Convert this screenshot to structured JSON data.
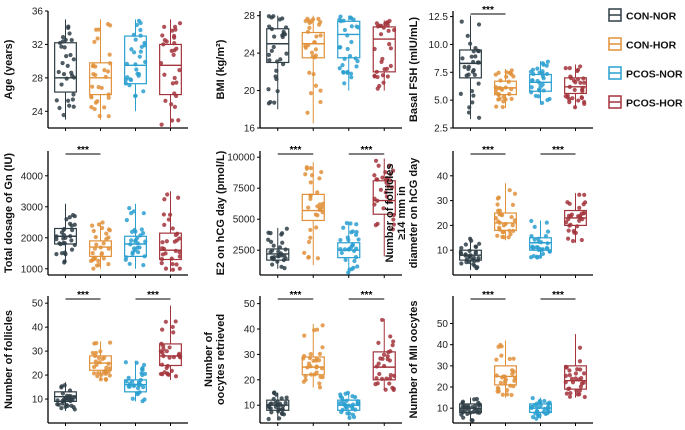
{
  "groups": [
    "CON-NOR",
    "CON-HOR",
    "PCOS-NOR",
    "PCOS-HOR"
  ],
  "colors": {
    "CON-NOR": "#2f3e46",
    "CON-HOR": "#e0913a",
    "PCOS-NOR": "#2a9fd0",
    "PCOS-HOR": "#a3343c"
  },
  "legend": {
    "items": [
      "CON-NOR",
      "CON-HOR",
      "PCOS-NOR",
      "PCOS-HOR"
    ],
    "placement": "right"
  },
  "chart_data": [
    {
      "type": "box",
      "id": "age",
      "ylabel": "Age (years)",
      "ylim": [
        22,
        36
      ],
      "yticks": [
        24,
        28,
        32,
        36
      ],
      "series": [
        {
          "name": "CON-NOR",
          "q1": 26.3,
          "median": 28.0,
          "q3": 32.2,
          "whisker_low": 23.0,
          "whisker_high": 35.0
        },
        {
          "name": "CON-HOR",
          "q1": 26.0,
          "median": 28.0,
          "q3": 29.8,
          "whisker_low": 23.0,
          "whisker_high": 35.0
        },
        {
          "name": "PCOS-NOR",
          "q1": 27.3,
          "median": 29.5,
          "q3": 33.0,
          "whisker_low": 24.0,
          "whisker_high": 35.0
        },
        {
          "name": "PCOS-HOR",
          "q1": 26.0,
          "median": 29.5,
          "q3": 32.0,
          "whisker_low": 22.0,
          "whisker_high": 35.0
        }
      ],
      "significance": []
    },
    {
      "type": "box",
      "id": "bmi",
      "ylabel": "BMI (kg/m²)",
      "ylim": [
        16,
        28.5
      ],
      "yticks": [
        16,
        20,
        24,
        28
      ],
      "series": [
        {
          "name": "CON-NOR",
          "q1": 23.0,
          "median": 25.0,
          "q3": 26.6,
          "whisker_low": 18.0,
          "whisker_high": 28.0
        },
        {
          "name": "CON-HOR",
          "q1": 23.5,
          "median": 25.0,
          "q3": 26.2,
          "whisker_low": 16.5,
          "whisker_high": 28.0
        },
        {
          "name": "PCOS-NOR",
          "q1": 23.5,
          "median": 26.0,
          "q3": 27.4,
          "whisker_low": 20.0,
          "whisker_high": 28.0
        },
        {
          "name": "PCOS-HOR",
          "q1": 22.0,
          "median": 25.5,
          "q3": 26.8,
          "whisker_low": 20.0,
          "whisker_high": 27.5
        }
      ],
      "significance": []
    },
    {
      "type": "box",
      "id": "fsh",
      "ylabel": "Basal FSH (mIU/mL)",
      "ylim": [
        2.5,
        13
      ],
      "yticks": [
        2.5,
        5.0,
        7.5,
        10.0,
        12.5
      ],
      "series": [
        {
          "name": "CON-NOR",
          "q1": 7.0,
          "median": 8.3,
          "q3": 9.5,
          "whisker_low": 3.3,
          "whisker_high": 12.6
        },
        {
          "name": "CON-HOR",
          "q1": 5.5,
          "median": 6.1,
          "q3": 6.7,
          "whisker_low": 4.3,
          "whisker_high": 7.8
        },
        {
          "name": "PCOS-NOR",
          "q1": 5.8,
          "median": 6.6,
          "q3": 7.3,
          "whisker_low": 4.6,
          "whisker_high": 8.5
        },
        {
          "name": "PCOS-HOR",
          "q1": 5.6,
          "median": 6.2,
          "q3": 7.0,
          "whisker_low": 4.3,
          "whisker_high": 8.2
        }
      ],
      "significance": [
        {
          "from": 0,
          "to": 1,
          "label": "***"
        }
      ]
    },
    {
      "type": "box",
      "id": "gn",
      "ylabel": "Total dosage of Gn (IU)",
      "ylim": [
        800,
        4800
      ],
      "yticks": [
        1000,
        2000,
        3000,
        4000
      ],
      "series": [
        {
          "name": "CON-NOR",
          "q1": 1800,
          "median": 2050,
          "q3": 2300,
          "whisker_low": 1200,
          "whisker_high": 3100
        },
        {
          "name": "CON-HOR",
          "q1": 1400,
          "median": 1700,
          "q3": 1900,
          "whisker_low": 1000,
          "whisker_high": 2500
        },
        {
          "name": "PCOS-NOR",
          "q1": 1400,
          "median": 1800,
          "q3": 2050,
          "whisker_low": 1000,
          "whisker_high": 3100
        },
        {
          "name": "PCOS-HOR",
          "q1": 1300,
          "median": 1600,
          "q3": 2150,
          "whisker_low": 900,
          "whisker_high": 3500
        }
      ],
      "significance": [
        {
          "from": 0,
          "to": 1,
          "label": "***"
        }
      ]
    },
    {
      "type": "box",
      "id": "e2",
      "ylabel": "E2 on hCG day (pmol/L)",
      "ylim": [
        500,
        10500
      ],
      "yticks": [
        2500,
        5000,
        7500,
        10000
      ],
      "series": [
        {
          "name": "CON-NOR",
          "q1": 1700,
          "median": 2200,
          "q3": 2600,
          "whisker_low": 1000,
          "whisker_high": 4300
        },
        {
          "name": "CON-HOR",
          "q1": 4900,
          "median": 5700,
          "q3": 7000,
          "whisker_low": 1300,
          "whisker_high": 9600
        },
        {
          "name": "PCOS-NOR",
          "q1": 1900,
          "median": 2500,
          "q3": 3100,
          "whisker_low": 600,
          "whisker_high": 4800
        },
        {
          "name": "PCOS-HOR",
          "q1": 5400,
          "median": 6500,
          "q3": 8100,
          "whisker_low": 2000,
          "whisker_high": 9900
        }
      ],
      "significance": [
        {
          "from": 0,
          "to": 1,
          "label": "***"
        },
        {
          "from": 2,
          "to": 3,
          "label": "***"
        }
      ]
    },
    {
      "type": "box",
      "id": "follicles14",
      "ylabel": "Number of follicles ≥14 mm in diameter on hCG day",
      "ylabel_lines": [
        "Number of follicles",
        "≥14 mm in",
        "diameter on hCG day"
      ],
      "ylim": [
        0,
        50
      ],
      "yticks": [
        10,
        20,
        30,
        40
      ],
      "series": [
        {
          "name": "CON-NOR",
          "q1": 6,
          "median": 8,
          "q3": 10,
          "whisker_low": 2,
          "whisker_high": 15
        },
        {
          "name": "CON-HOR",
          "q1": 18,
          "median": 21,
          "q3": 25,
          "whisker_low": 14,
          "whisker_high": 37
        },
        {
          "name": "PCOS-NOR",
          "q1": 10,
          "median": 13,
          "q3": 15,
          "whisker_low": 7,
          "whisker_high": 22
        },
        {
          "name": "PCOS-HOR",
          "q1": 20,
          "median": 23,
          "q3": 26,
          "whisker_low": 13,
          "whisker_high": 33
        }
      ],
      "significance": [
        {
          "from": 0,
          "to": 1,
          "label": "***"
        },
        {
          "from": 2,
          "to": 3,
          "label": "***"
        }
      ]
    },
    {
      "type": "box",
      "id": "follicles",
      "ylabel": "Number of follicles",
      "ylim": [
        0,
        53
      ],
      "yticks": [
        10,
        20,
        30,
        40,
        50
      ],
      "series": [
        {
          "name": "CON-NOR",
          "q1": 9,
          "median": 11,
          "q3": 13,
          "whisker_low": 5,
          "whisker_high": 17
        },
        {
          "name": "CON-HOR",
          "q1": 22,
          "median": 25,
          "q3": 28,
          "whisker_low": 18,
          "whisker_high": 34
        },
        {
          "name": "PCOS-NOR",
          "q1": 13,
          "median": 16,
          "q3": 18,
          "whisker_low": 9,
          "whisker_high": 26
        },
        {
          "name": "PCOS-HOR",
          "q1": 24,
          "median": 28,
          "q3": 33,
          "whisker_low": 18,
          "whisker_high": 49
        }
      ],
      "significance": [
        {
          "from": 0,
          "to": 1,
          "label": "***"
        },
        {
          "from": 2,
          "to": 3,
          "label": "***"
        }
      ]
    },
    {
      "type": "box",
      "id": "oocytes",
      "ylabel": "Number of oocytes retrieved",
      "ylabel_lines": [
        "Number of",
        "oocytes retrieved"
      ],
      "ylim": [
        3,
        53
      ],
      "yticks": [
        10,
        20,
        30,
        40,
        50
      ],
      "series": [
        {
          "name": "CON-NOR",
          "q1": 8,
          "median": 10,
          "q3": 12,
          "whisker_low": 4,
          "whisker_high": 15
        },
        {
          "name": "CON-HOR",
          "q1": 22,
          "median": 25,
          "q3": 29,
          "whisker_low": 17,
          "whisker_high": 42
        },
        {
          "name": "PCOS-NOR",
          "q1": 8,
          "median": 10,
          "q3": 12,
          "whisker_low": 5,
          "whisker_high": 15
        },
        {
          "name": "PCOS-HOR",
          "q1": 20,
          "median": 25,
          "q3": 31,
          "whisker_low": 16,
          "whisker_high": 44
        }
      ],
      "significance": [
        {
          "from": 0,
          "to": 1,
          "label": "***"
        },
        {
          "from": 2,
          "to": 3,
          "label": "***"
        }
      ]
    },
    {
      "type": "box",
      "id": "mii",
      "ylabel": "Number of MII oocytes",
      "ylim": [
        3,
        63
      ],
      "yticks": [
        10,
        20,
        30,
        40,
        50
      ],
      "series": [
        {
          "name": "CON-NOR",
          "q1": 8,
          "median": 10,
          "q3": 12,
          "whisker_low": 4,
          "whisker_high": 15
        },
        {
          "name": "CON-HOR",
          "q1": 21,
          "median": 25,
          "q3": 30,
          "whisker_low": 15,
          "whisker_high": 42
        },
        {
          "name": "PCOS-NOR",
          "q1": 8,
          "median": 10,
          "q3": 12,
          "whisker_low": 5,
          "whisker_high": 15
        },
        {
          "name": "PCOS-HOR",
          "q1": 19,
          "median": 23,
          "q3": 30,
          "whisker_low": 15,
          "whisker_high": 45
        }
      ],
      "significance": [
        {
          "from": 0,
          "to": 1,
          "label": "***"
        },
        {
          "from": 2,
          "to": 3,
          "label": "***"
        }
      ]
    }
  ]
}
